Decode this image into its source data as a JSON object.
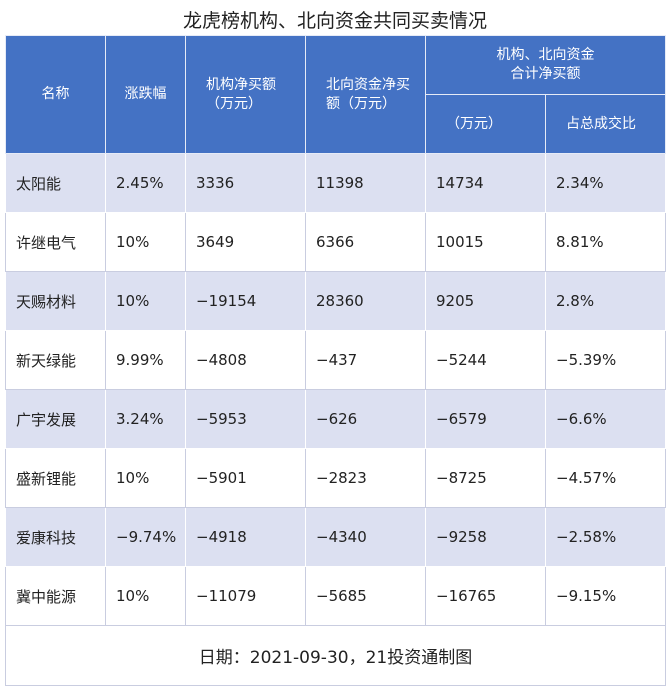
{
  "title": "龙虎榜机构、北向资金共同买卖情况",
  "table": {
    "header": [
      [
        "名称"
      ],
      [
        "涨跌幅"
      ],
      [
        "机构净买额",
        "（万元）"
      ],
      [
        "北向资金净买",
        "额（万元）"
      ]
    ],
    "group_header": [
      "机构、北向资金",
      "合计净买额"
    ],
    "group_subheader": [
      [
        "（万元）"
      ],
      [
        "占总成交比"
      ]
    ],
    "rows": [
      [
        "太阳能",
        "2.45%",
        "3336",
        "11398",
        "14734",
        "2.34%"
      ],
      [
        "许继电气",
        "10%",
        "3649",
        "6366",
        "10015",
        "8.81%"
      ],
      [
        "天赐材料",
        "10%",
        "−19154",
        "28360",
        "9205",
        "2.8%"
      ],
      [
        "新天绿能",
        "9.99%",
        "−4808",
        "−437",
        "−5244",
        "−5.39%"
      ],
      [
        "广宇发展",
        "3.24%",
        "−5953",
        "−626",
        "−6579",
        "−6.6%"
      ],
      [
        "盛新锂能",
        "10%",
        "−5901",
        "−2823",
        "−8725",
        "−4.57%"
      ],
      [
        "爱康科技",
        "−9.74%",
        "−4918",
        "−4340",
        "−9258",
        "−2.58%"
      ],
      [
        "冀中能源",
        "10%",
        "−11079",
        "−5685",
        "−16765",
        "−9.15%"
      ]
    ]
  },
  "footer": "日期：2021-09-30，21投资通制图"
}
